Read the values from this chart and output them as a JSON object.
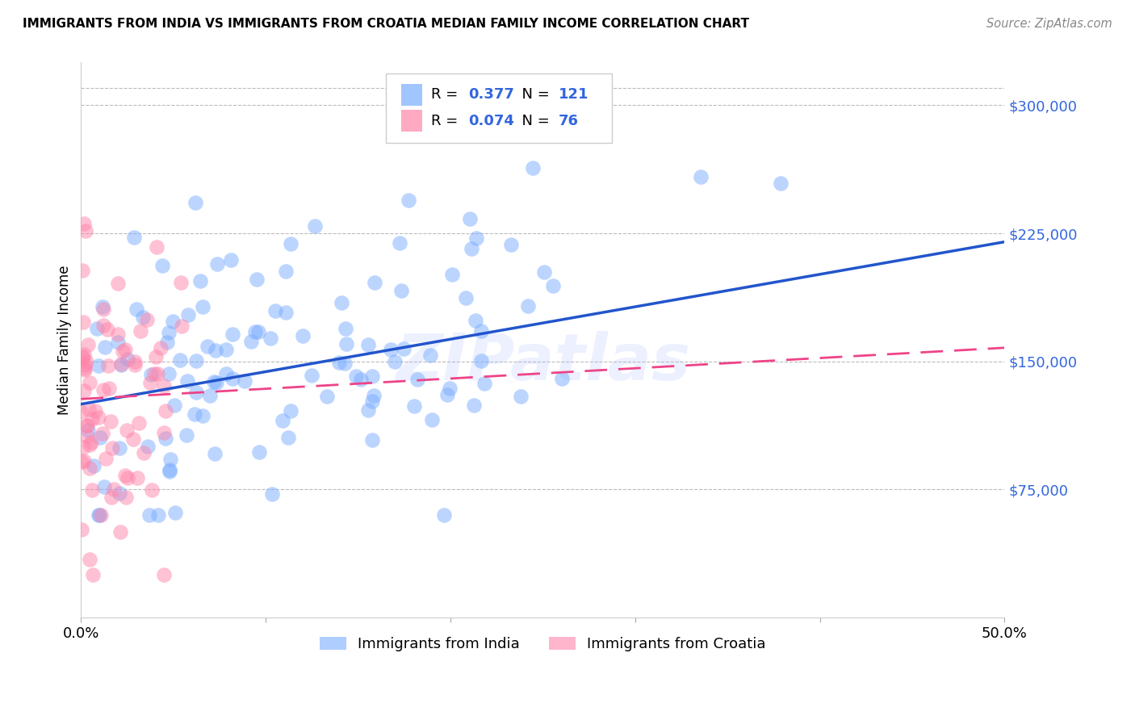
{
  "title": "IMMIGRANTS FROM INDIA VS IMMIGRANTS FROM CROATIA MEDIAN FAMILY INCOME CORRELATION CHART",
  "source": "Source: ZipAtlas.com",
  "ylabel": "Median Family Income",
  "y_ticks": [
    75000,
    150000,
    225000,
    300000
  ],
  "y_tick_labels": [
    "$75,000",
    "$150,000",
    "$225,000",
    "$300,000"
  ],
  "x_min": 0.0,
  "x_max": 0.5,
  "y_min": 0,
  "y_max": 325000,
  "india_R": 0.377,
  "india_N": 121,
  "croatia_R": 0.074,
  "croatia_N": 76,
  "india_color": "#7aadff",
  "croatia_color": "#ff85aa",
  "india_line_color": "#2255cc",
  "croatia_line_color": "#ee4488",
  "watermark": "ZIPatlas",
  "legend_label_india": "Immigrants from India",
  "legend_label_croatia": "Immigrants from Croatia",
  "india_line_y0": 125000,
  "india_line_y1": 220000,
  "croatia_line_y0": 128000,
  "croatia_line_y1": 158000,
  "india_seed": 7,
  "croatia_seed": 13
}
